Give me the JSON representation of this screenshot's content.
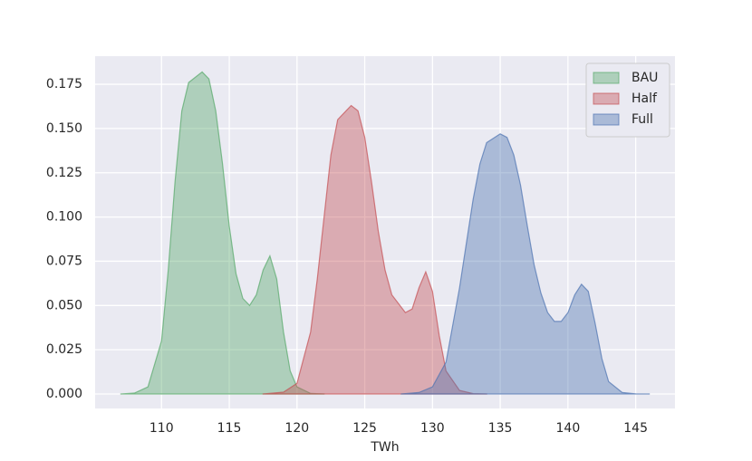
{
  "chart_data": {
    "type": "area",
    "xlabel": "TWh",
    "xlim": [
      105.1,
      147.9
    ],
    "ylim": [
      -0.0082,
      0.1909
    ],
    "xticks": [
      110,
      115,
      120,
      125,
      130,
      135,
      140,
      145
    ],
    "yticks": [
      {
        "value": 0,
        "label": "0.000"
      },
      {
        "value": 0.025,
        "label": "0.025"
      },
      {
        "value": 0.05,
        "label": "0.050"
      },
      {
        "value": 0.075,
        "label": "0.075"
      },
      {
        "value": 0.1,
        "label": "0.100"
      },
      {
        "value": 0.125,
        "label": "0.125"
      },
      {
        "value": 0.15,
        "label": "0.150"
      },
      {
        "value": 0.175,
        "label": "0.175"
      }
    ],
    "grid": true,
    "legend": "upper right",
    "series": [
      {
        "name": "BAU",
        "color": "#55a868",
        "x": [
          107,
          108,
          109,
          110,
          110.5,
          111,
          111.5,
          112,
          113,
          113.5,
          114,
          114.5,
          115,
          115.5,
          116,
          116.5,
          117,
          117.5,
          118,
          118.5,
          119,
          119.5,
          120,
          121,
          122
        ],
        "values": [
          0,
          0.0005,
          0.004,
          0.03,
          0.07,
          0.12,
          0.16,
          0.176,
          0.182,
          0.178,
          0.16,
          0.13,
          0.095,
          0.068,
          0.054,
          0.05,
          0.056,
          0.07,
          0.078,
          0.065,
          0.035,
          0.013,
          0.004,
          0.0003,
          0
        ]
      },
      {
        "name": "Half",
        "color": "#c44e52",
        "x": [
          117.5,
          119,
          120,
          121,
          121.5,
          122,
          122.5,
          123,
          124,
          124.5,
          125,
          125.5,
          126,
          126.5,
          127,
          128,
          128.5,
          129,
          129.5,
          130,
          130.5,
          131,
          132,
          133,
          134
        ],
        "values": [
          0,
          0.001,
          0.006,
          0.035,
          0.065,
          0.1,
          0.135,
          0.155,
          0.163,
          0.16,
          0.145,
          0.12,
          0.092,
          0.07,
          0.056,
          0.046,
          0.048,
          0.06,
          0.069,
          0.058,
          0.033,
          0.013,
          0.002,
          0.0002,
          0
        ]
      },
      {
        "name": "Full",
        "color": "#4c72b0",
        "x": [
          127.7,
          129,
          130,
          131,
          132,
          132.5,
          133,
          133.5,
          134,
          135,
          135.5,
          136,
          136.5,
          137,
          137.5,
          138,
          138.5,
          139,
          139.5,
          140,
          140.5,
          141,
          141.5,
          142,
          142.5,
          143,
          144,
          145,
          146
        ],
        "values": [
          0,
          0.0008,
          0.004,
          0.018,
          0.06,
          0.085,
          0.11,
          0.13,
          0.142,
          0.147,
          0.145,
          0.135,
          0.118,
          0.095,
          0.073,
          0.057,
          0.046,
          0.041,
          0.041,
          0.046,
          0.056,
          0.062,
          0.058,
          0.04,
          0.02,
          0.007,
          0.0008,
          0.0001,
          0
        ]
      }
    ]
  }
}
